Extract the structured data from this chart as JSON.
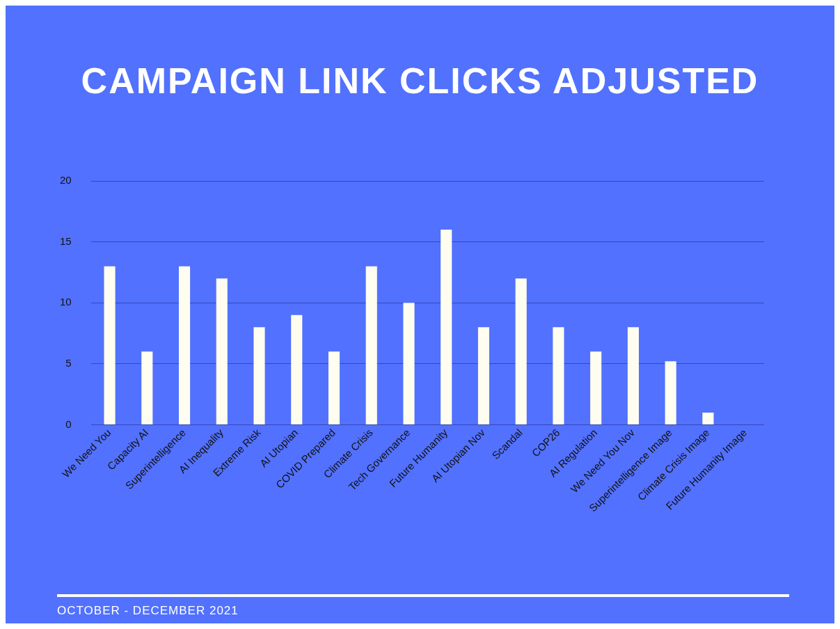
{
  "chart_data": {
    "type": "bar",
    "title": "CAMPAIGN LINK CLICKS ADJUSTED",
    "categories": [
      "We Need You",
      "Capacity AI",
      "Superintelligence",
      "AI Inequality",
      "Extreme Risk",
      "AI Utopian",
      "COVID Prepared",
      "Climate Crisis",
      "Tech Governance",
      "Future Humanity",
      "AI Utopian Nov",
      "Scandal",
      "COP26",
      "AI Regulation",
      "We Need You Nov",
      "Superintelligence Image",
      "Climate Crisis Image",
      "Future Humanity Image"
    ],
    "values": [
      13,
      6,
      13,
      12,
      8,
      9,
      6,
      13,
      10,
      16,
      8,
      12,
      8,
      6,
      8,
      5.2,
      1,
      0
    ],
    "color": "#fffdf0",
    "ylim": [
      0,
      20
    ],
    "yticks": [
      0,
      5,
      10,
      15,
      20
    ],
    "grid": "y",
    "annotations": [
      "OCTOBER - DECEMBER 2021"
    ]
  }
}
